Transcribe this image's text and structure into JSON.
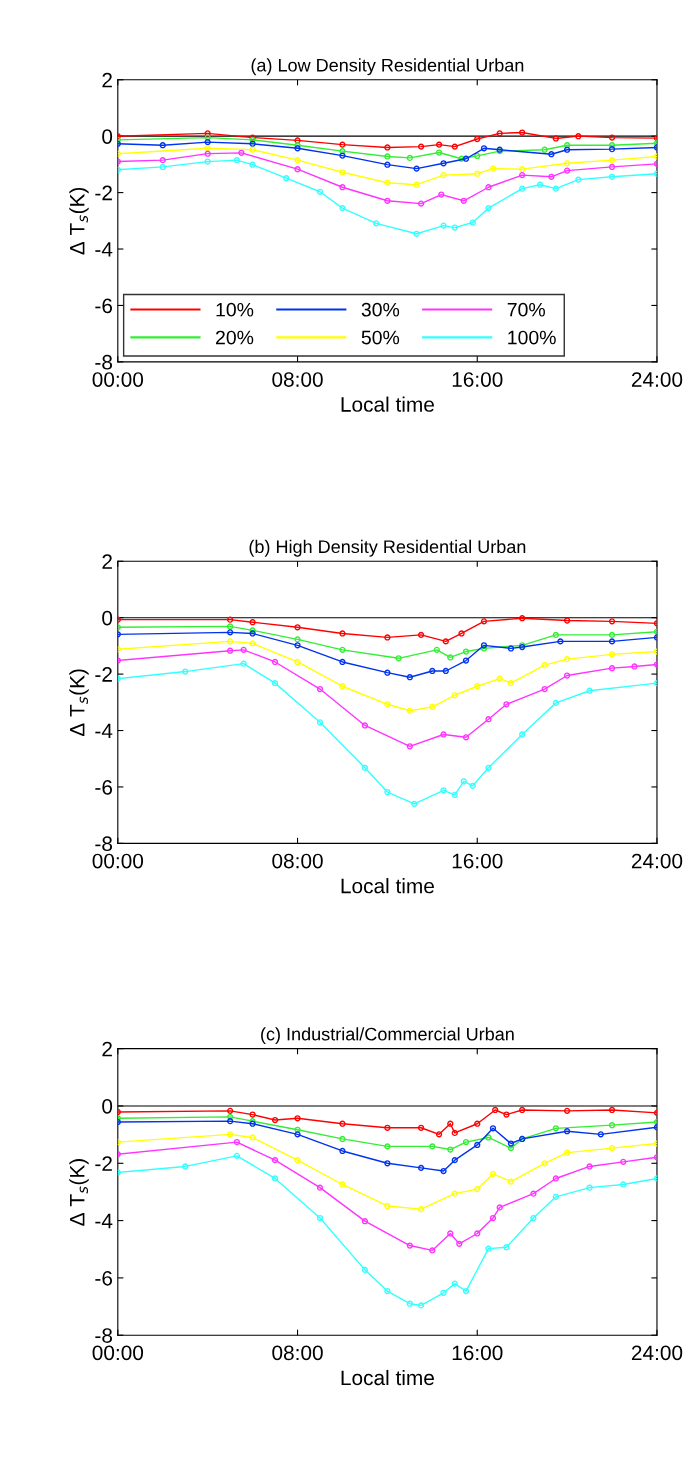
{
  "chart_data": [
    {
      "type": "line",
      "title": "(a) Low Density Residential Urban",
      "xlabel": "Local time",
      "ylabel": "Δ T$_{s}$(K)",
      "xlim": [
        0,
        24
      ],
      "xticks": [
        {
          "value": 0,
          "label": "00:00"
        },
        {
          "value": 8,
          "label": "08:00"
        },
        {
          "value": 16,
          "label": "16:00"
        },
        {
          "value": 24,
          "label": "24:00"
        }
      ],
      "ylim": [
        -8,
        2
      ],
      "yticks": [
        -8,
        -6,
        -4,
        -2,
        0,
        2
      ],
      "grid": false,
      "legend": "bottom left",
      "marker": "circle",
      "line_style": "solid",
      "ref_lines": [
        {
          "axis": "y",
          "value": 0,
          "color": "#000000"
        }
      ],
      "series": [
        {
          "name": "10%",
          "color": "#ff0000",
          "x": [
            0,
            4,
            6,
            8,
            10,
            12,
            13.5,
            14.3,
            15,
            16,
            17,
            18,
            19.5,
            20.5,
            22,
            24
          ],
          "values": [
            0,
            0.1,
            -0.05,
            -0.15,
            -0.3,
            -0.4,
            -0.37,
            -0.3,
            -0.37,
            -0.1,
            0.1,
            0.13,
            -0.08,
            0,
            -0.05,
            -0.07
          ]
        },
        {
          "name": "20%",
          "color": "#33ee33",
          "x": [
            0,
            4,
            6,
            8,
            10,
            12,
            13,
            14.3,
            15.3,
            16,
            17,
            19,
            20,
            22,
            24
          ],
          "values": [
            -0.13,
            -0.05,
            -0.13,
            -0.32,
            -0.53,
            -0.72,
            -0.77,
            -0.58,
            -0.8,
            -0.7,
            -0.53,
            -0.48,
            -0.32,
            -0.32,
            -0.25
          ]
        },
        {
          "name": "30%",
          "color": "#0033ee",
          "x": [
            0,
            2,
            4,
            6,
            8,
            10,
            12,
            13.3,
            14.5,
            15.5,
            16.3,
            17,
            19.3,
            20,
            22,
            24
          ],
          "values": [
            -0.27,
            -0.32,
            -0.21,
            -0.27,
            -0.43,
            -0.69,
            -1.01,
            -1.15,
            -0.96,
            -0.8,
            -0.43,
            -0.48,
            -0.64,
            -0.48,
            -0.46,
            -0.4
          ]
        },
        {
          "name": "50%",
          "color": "#ffff00",
          "x": [
            0,
            4,
            6,
            8,
            10,
            12,
            13.3,
            14.5,
            16,
            16.7,
            18,
            20,
            22,
            24
          ],
          "values": [
            -0.62,
            -0.43,
            -0.48,
            -0.85,
            -1.28,
            -1.65,
            -1.72,
            -1.38,
            -1.33,
            -1.15,
            -1.17,
            -0.96,
            -0.85,
            -0.72
          ]
        },
        {
          "name": "70%",
          "color": "#ff33ff",
          "x": [
            0,
            2,
            4,
            5.5,
            8,
            10,
            12,
            13.5,
            14.4,
            15.4,
            16.5,
            18,
            19.3,
            20,
            22,
            24
          ],
          "values": [
            -0.9,
            -0.85,
            -0.62,
            -0.59,
            -1.17,
            -1.81,
            -2.29,
            -2.39,
            -2.07,
            -2.29,
            -1.81,
            -1.38,
            -1.44,
            -1.22,
            -1.09,
            -0.98
          ]
        },
        {
          "name": "100%",
          "color": "#33ffff",
          "x": [
            0,
            2,
            4,
            5.3,
            6,
            7.5,
            9,
            10,
            11.5,
            13.3,
            14.5,
            15,
            15.8,
            16.5,
            18,
            18.8,
            19.5,
            20.5,
            22,
            24
          ],
          "values": [
            -1.19,
            -1.09,
            -0.9,
            -0.85,
            -1.01,
            -1.49,
            -1.97,
            -2.55,
            -3.09,
            -3.46,
            -3.17,
            -3.24,
            -3.06,
            -2.55,
            -1.86,
            -1.72,
            -1.86,
            -1.54,
            -1.44,
            -1.33
          ]
        }
      ]
    },
    {
      "type": "line",
      "title": "(b) High Density Residential Urban",
      "xlabel": "Local time",
      "ylabel": "Δ T$_{s}$(K)",
      "xlim": [
        0,
        24
      ],
      "xticks": [
        {
          "value": 0,
          "label": "00:00"
        },
        {
          "value": 8,
          "label": "08:00"
        },
        {
          "value": 16,
          "label": "16:00"
        },
        {
          "value": 24,
          "label": "24:00"
        }
      ],
      "ylim": [
        -8,
        2
      ],
      "yticks": [
        -8,
        -6,
        -4,
        -2,
        0,
        2
      ],
      "grid": false,
      "marker": "circle",
      "line_style": "solid",
      "ref_lines": [
        {
          "axis": "y",
          "value": 0,
          "color": "#000000"
        }
      ],
      "series": [
        {
          "color": "#ff0000",
          "x": [
            0,
            5,
            6,
            8,
            10,
            12,
            13.5,
            14.6,
            15.3,
            16.3,
            18,
            20,
            22,
            24
          ],
          "values": [
            -0.07,
            -0.07,
            -0.16,
            -0.34,
            -0.56,
            -0.7,
            -0.61,
            -0.84,
            -0.56,
            -0.13,
            -0.02,
            -0.1,
            -0.13,
            -0.2
          ]
        },
        {
          "color": "#33ee33",
          "x": [
            0,
            5,
            6,
            8,
            10,
            12.5,
            14.2,
            14.8,
            15.5,
            16.3,
            18,
            19.5,
            22,
            24
          ],
          "values": [
            -0.34,
            -0.31,
            -0.45,
            -0.77,
            -1.14,
            -1.44,
            -1.14,
            -1.41,
            -1.2,
            -1.09,
            -0.98,
            -0.61,
            -0.61,
            -0.5
          ]
        },
        {
          "color": "#0033ee",
          "x": [
            0,
            5,
            6,
            8,
            10,
            12,
            13,
            14,
            14.6,
            15.5,
            16.3,
            17.5,
            18,
            19.7,
            22,
            24
          ],
          "values": [
            -0.59,
            -0.52,
            -0.56,
            -0.98,
            -1.57,
            -1.95,
            -2.11,
            -1.89,
            -1.89,
            -1.52,
            -0.98,
            -1.09,
            -1.04,
            -0.84,
            -0.84,
            -0.7
          ]
        },
        {
          "color": "#ffff00",
          "x": [
            0,
            5,
            6,
            8,
            10,
            12,
            13,
            14,
            15,
            16,
            17,
            17.5,
            19,
            20,
            22,
            24
          ],
          "values": [
            -1.12,
            -0.84,
            -0.91,
            -1.57,
            -2.43,
            -3.07,
            -3.3,
            -3.16,
            -2.75,
            -2.43,
            -2.16,
            -2.32,
            -1.68,
            -1.47,
            -1.3,
            -1.2
          ]
        },
        {
          "color": "#ff33ff",
          "x": [
            0,
            5,
            5.6,
            7,
            9,
            11,
            13,
            14.5,
            15.5,
            16.5,
            17.3,
            19,
            20,
            22,
            23,
            24
          ],
          "values": [
            -1.52,
            -1.17,
            -1.14,
            -1.57,
            -2.53,
            -3.82,
            -4.56,
            -4.14,
            -4.24,
            -3.6,
            -3.07,
            -2.53,
            -2.05,
            -1.79,
            -1.73,
            -1.66
          ]
        },
        {
          "color": "#33ffff",
          "x": [
            0,
            3,
            5.6,
            7,
            9,
            11,
            12,
            13.2,
            14.5,
            15,
            15.4,
            15.8,
            16.5,
            18,
            19.5,
            21,
            24
          ],
          "values": [
            -2.16,
            -1.91,
            -1.63,
            -2.32,
            -3.71,
            -5.32,
            -6.18,
            -6.6,
            -6.12,
            -6.28,
            -5.8,
            -5.96,
            -5.32,
            -4.14,
            -3.02,
            -2.59,
            -2.32
          ]
        }
      ]
    },
    {
      "type": "line",
      "title": "(c) Industrial/Commercial Urban",
      "xlabel": "Local time",
      "ylabel": "Δ T$_{s}$(K)",
      "xlim": [
        0,
        24
      ],
      "xticks": [
        {
          "value": 0,
          "label": "00:00"
        },
        {
          "value": 8,
          "label": "08:00"
        },
        {
          "value": 16,
          "label": "16:00"
        },
        {
          "value": 24,
          "label": "24:00"
        }
      ],
      "ylim": [
        -8,
        2
      ],
      "yticks": [
        -8,
        -6,
        -4,
        -2,
        0,
        2
      ],
      "grid": false,
      "marker": "circle",
      "line_style": "solid",
      "ref_lines": [
        {
          "axis": "y",
          "value": 0,
          "color": "#000000"
        }
      ],
      "series": [
        {
          "color": "#ff0000",
          "x": [
            0,
            5,
            6,
            7,
            8,
            10,
            12,
            13.5,
            14.3,
            14.8,
            15,
            16,
            16.8,
            17.3,
            18,
            20,
            22,
            24
          ],
          "values": [
            -0.21,
            -0.17,
            -0.3,
            -0.49,
            -0.43,
            -0.62,
            -0.76,
            -0.76,
            -0.99,
            -0.62,
            -0.94,
            -0.62,
            -0.14,
            -0.3,
            -0.14,
            -0.17,
            -0.14,
            -0.24
          ]
        },
        {
          "color": "#33ee33",
          "x": [
            0,
            5,
            6,
            8,
            10,
            12,
            14,
            14.8,
            15.5,
            16.5,
            17.5,
            18,
            19.5,
            22,
            24
          ],
          "values": [
            -0.43,
            -0.38,
            -0.53,
            -0.83,
            -1.15,
            -1.41,
            -1.41,
            -1.52,
            -1.26,
            -1.1,
            -1.47,
            -1.15,
            -0.78,
            -0.67,
            -0.56
          ]
        },
        {
          "color": "#0033ee",
          "x": [
            0,
            5,
            6,
            8,
            10,
            12,
            13.5,
            14.5,
            15,
            16,
            16.7,
            17.5,
            18,
            20,
            21.5,
            24
          ],
          "values": [
            -0.56,
            -0.53,
            -0.62,
            -0.99,
            -1.57,
            -2.0,
            -2.16,
            -2.27,
            -1.89,
            -1.36,
            -0.78,
            -1.31,
            -1.15,
            -0.88,
            -0.99,
            -0.74
          ]
        },
        {
          "color": "#ffff00",
          "x": [
            0,
            5,
            6,
            8,
            10,
            12,
            13.5,
            15,
            16,
            16.7,
            17.5,
            19,
            20,
            22,
            24
          ],
          "values": [
            -1.26,
            -0.99,
            -1.1,
            -1.89,
            -2.74,
            -3.49,
            -3.6,
            -3.06,
            -2.9,
            -2.37,
            -2.64,
            -2.0,
            -1.63,
            -1.47,
            -1.31
          ]
        },
        {
          "color": "#ff33ff",
          "x": [
            0,
            5.3,
            7,
            9,
            11,
            13,
            14,
            14.8,
            15.2,
            16,
            16.7,
            17,
            18.5,
            19.5,
            21,
            22.5,
            24
          ],
          "values": [
            -1.68,
            -1.26,
            -1.89,
            -2.85,
            -4.02,
            -4.87,
            -5.04,
            -4.45,
            -4.81,
            -4.45,
            -3.91,
            -3.54,
            -3.06,
            -2.53,
            -2.11,
            -1.95,
            -1.79
          ]
        },
        {
          "color": "#33ffff",
          "x": [
            0,
            3,
            5.3,
            7,
            9,
            11,
            12,
            13,
            13.5,
            14.5,
            15,
            15.5,
            16.5,
            17.3,
            18.5,
            19.5,
            21,
            22.5,
            24
          ],
          "values": [
            -2.32,
            -2.11,
            -1.74,
            -2.53,
            -3.91,
            -5.72,
            -6.46,
            -6.9,
            -6.96,
            -6.52,
            -6.2,
            -6.46,
            -4.98,
            -4.93,
            -3.91,
            -3.17,
            -2.85,
            -2.74,
            -2.53
          ]
        }
      ]
    }
  ]
}
